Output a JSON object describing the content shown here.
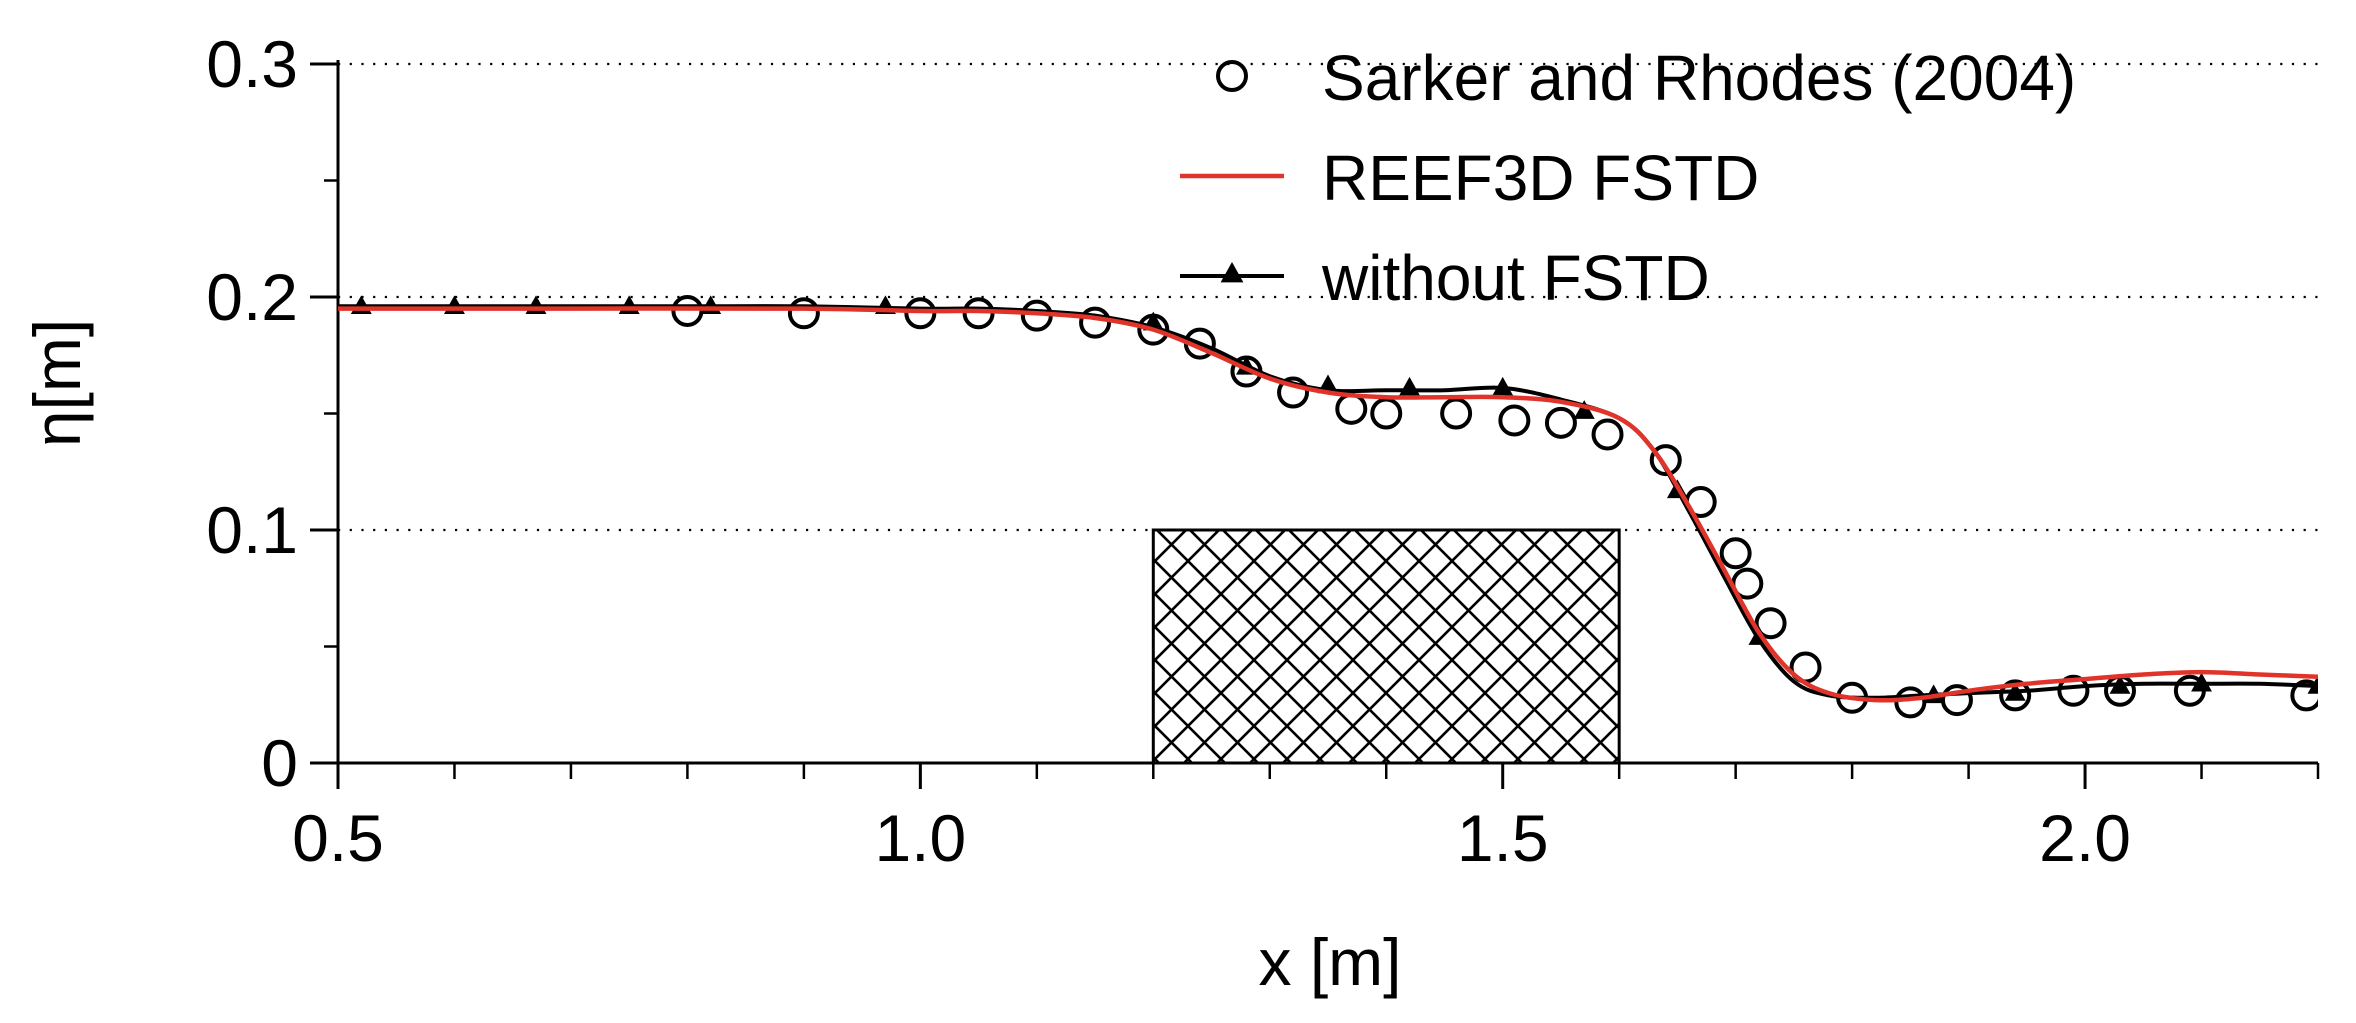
{
  "chart_data": {
    "type": "line",
    "title": "",
    "xlabel": "x [m]",
    "ylabel": "η[m]",
    "xlim": [
      0.5,
      2.2
    ],
    "ylim": [
      0,
      0.3
    ],
    "x_ticks": [
      {
        "value": 0.5,
        "label": "0.5"
      },
      {
        "value": 1.0,
        "label": "1.0"
      },
      {
        "value": 1.5,
        "label": "1.5"
      },
      {
        "value": 2.0,
        "label": "2.0"
      }
    ],
    "x_minor_step": 0.1,
    "y_ticks": [
      {
        "value": 0,
        "label": "0"
      },
      {
        "value": 0.1,
        "label": "0.1"
      },
      {
        "value": 0.2,
        "label": "0.2"
      },
      {
        "value": 0.3,
        "label": "0.3"
      }
    ],
    "y_minor_step": 0.05,
    "grid": "horizontal dotted at major y ticks",
    "legend_position": "top-right",
    "obstacle": {
      "name": "porous structure (hatched)",
      "x_range": [
        1.2,
        1.6
      ],
      "y_range": [
        0,
        0.1
      ]
    },
    "series": [
      {
        "name": "Sarker and Rhodes (2004)",
        "style": "open-circle",
        "color": "#000000",
        "points": [
          [
            0.8,
            0.194
          ],
          [
            0.9,
            0.193
          ],
          [
            1.0,
            0.193
          ],
          [
            1.05,
            0.193
          ],
          [
            1.1,
            0.192
          ],
          [
            1.15,
            0.189
          ],
          [
            1.2,
            0.186
          ],
          [
            1.24,
            0.18
          ],
          [
            1.28,
            0.168
          ],
          [
            1.32,
            0.159
          ],
          [
            1.37,
            0.152
          ],
          [
            1.4,
            0.15
          ],
          [
            1.46,
            0.15
          ],
          [
            1.51,
            0.147
          ],
          [
            1.55,
            0.146
          ],
          [
            1.59,
            0.141
          ],
          [
            1.64,
            0.13
          ],
          [
            1.67,
            0.112
          ],
          [
            1.7,
            0.09
          ],
          [
            1.71,
            0.077
          ],
          [
            1.73,
            0.06
          ],
          [
            1.76,
            0.041
          ],
          [
            1.8,
            0.028
          ],
          [
            1.85,
            0.026
          ],
          [
            1.89,
            0.027
          ],
          [
            1.94,
            0.029
          ],
          [
            1.99,
            0.031
          ],
          [
            2.03,
            0.031
          ],
          [
            2.09,
            0.031
          ],
          [
            2.19,
            0.029
          ]
        ]
      },
      {
        "name": "REEF3D FSTD",
        "style": "line",
        "color": "#e0342a",
        "points": [
          [
            0.5,
            0.195
          ],
          [
            0.7,
            0.195
          ],
          [
            0.9,
            0.195
          ],
          [
            1.0,
            0.194
          ],
          [
            1.05,
            0.194
          ],
          [
            1.1,
            0.193
          ],
          [
            1.15,
            0.191
          ],
          [
            1.2,
            0.186
          ],
          [
            1.25,
            0.176
          ],
          [
            1.3,
            0.165
          ],
          [
            1.35,
            0.159
          ],
          [
            1.4,
            0.157
          ],
          [
            1.45,
            0.157
          ],
          [
            1.5,
            0.157
          ],
          [
            1.55,
            0.155
          ],
          [
            1.6,
            0.148
          ],
          [
            1.63,
            0.134
          ],
          [
            1.66,
            0.11
          ],
          [
            1.69,
            0.083
          ],
          [
            1.72,
            0.056
          ],
          [
            1.75,
            0.038
          ],
          [
            1.78,
            0.03
          ],
          [
            1.82,
            0.027
          ],
          [
            1.86,
            0.028
          ],
          [
            1.9,
            0.031
          ],
          [
            1.95,
            0.034
          ],
          [
            2.0,
            0.036
          ],
          [
            2.05,
            0.038
          ],
          [
            2.1,
            0.039
          ],
          [
            2.15,
            0.038
          ],
          [
            2.2,
            0.037
          ]
        ]
      },
      {
        "name": "without FSTD",
        "style": "line-triangle",
        "color": "#000000",
        "points": [
          [
            0.5,
            0.196
          ],
          [
            0.6,
            0.196
          ],
          [
            0.7,
            0.196
          ],
          [
            0.8,
            0.196
          ],
          [
            0.9,
            0.196
          ],
          [
            1.0,
            0.195
          ],
          [
            1.05,
            0.195
          ],
          [
            1.1,
            0.194
          ],
          [
            1.15,
            0.192
          ],
          [
            1.2,
            0.187
          ],
          [
            1.25,
            0.178
          ],
          [
            1.3,
            0.166
          ],
          [
            1.35,
            0.16
          ],
          [
            1.4,
            0.16
          ],
          [
            1.45,
            0.16
          ],
          [
            1.5,
            0.161
          ],
          [
            1.55,
            0.156
          ],
          [
            1.6,
            0.148
          ],
          [
            1.63,
            0.134
          ],
          [
            1.66,
            0.108
          ],
          [
            1.69,
            0.08
          ],
          [
            1.72,
            0.053
          ],
          [
            1.75,
            0.035
          ],
          [
            1.78,
            0.029
          ],
          [
            1.82,
            0.028
          ],
          [
            1.86,
            0.029
          ],
          [
            1.9,
            0.03
          ],
          [
            1.95,
            0.031
          ],
          [
            2.0,
            0.033
          ],
          [
            2.05,
            0.034
          ],
          [
            2.1,
            0.034
          ],
          [
            2.15,
            0.034
          ],
          [
            2.2,
            0.033
          ]
        ],
        "marker_points": [
          [
            0.52,
            0.196
          ],
          [
            0.6,
            0.196
          ],
          [
            0.67,
            0.196
          ],
          [
            0.75,
            0.196
          ],
          [
            0.82,
            0.196
          ],
          [
            0.97,
            0.196
          ],
          [
            1.2,
            0.189
          ],
          [
            1.28,
            0.17
          ],
          [
            1.35,
            0.162
          ],
          [
            1.42,
            0.161
          ],
          [
            1.5,
            0.161
          ],
          [
            1.57,
            0.151
          ],
          [
            1.65,
            0.117
          ],
          [
            1.72,
            0.054
          ],
          [
            1.87,
            0.029
          ],
          [
            1.94,
            0.03
          ],
          [
            2.03,
            0.033
          ],
          [
            2.1,
            0.034
          ],
          [
            2.2,
            0.033
          ]
        ]
      }
    ]
  }
}
